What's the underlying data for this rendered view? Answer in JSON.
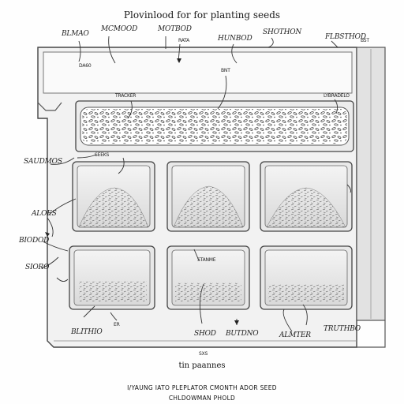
{
  "title": "Plovinlood for for planting seeds",
  "labels": {
    "top_1": "BLMAO",
    "top_1_sub": "DA60",
    "top_2": "MCMOOD",
    "top_3": "MOTBOD",
    "top_3_sub": "RATA",
    "top_4": "HUNBOD",
    "top_5": "SHOTHON",
    "top_6": "FLBSTHOD",
    "top_6_sub": "BST",
    "bnt": "BNT",
    "tracker": "TRACKER",
    "lybradelo": "LYBRADELO",
    "seeds": "SEEKS",
    "left_1": "SAUDMOS",
    "left_2": "ALOES",
    "left_3": "BIODOD",
    "left_4": "SIORO",
    "stanme": "STANME",
    "bottom_1": "BLITHIO",
    "bottom_er": "ER",
    "bottom_2": "SHOD",
    "bottom_3": "BUTDNO",
    "bottom_4": "ALMTER",
    "bottom_5": "TRUTHBO",
    "sxs": "SXS",
    "un_pannes": "tin paannes"
  },
  "caption_main": "I/YAUNG IATO PLEPLATOR CMONTH ADOR SEED",
  "caption_sub": "CHLDOWMAN PHOLD"
}
